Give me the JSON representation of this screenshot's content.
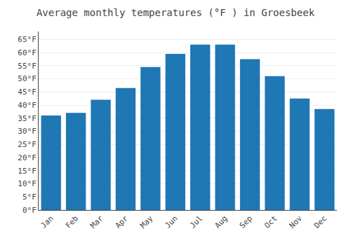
{
  "chart_data": {
    "type": "bar",
    "title": "Average monthly temperatures (°F ) in Groesbeek",
    "categories": [
      "Jan",
      "Feb",
      "Mar",
      "Apr",
      "May",
      "Jun",
      "Jul",
      "Aug",
      "Sep",
      "Oct",
      "Nov",
      "Dec"
    ],
    "values": [
      36,
      37,
      42,
      46.5,
      54.5,
      59.5,
      63,
      63,
      57.5,
      51,
      42.5,
      38.5
    ],
    "ylim": [
      0,
      68
    ],
    "yticks": [
      {
        "value": 0,
        "label": "0°F"
      },
      {
        "value": 5,
        "label": "5°F"
      },
      {
        "value": 10,
        "label": "10°F"
      },
      {
        "value": 15,
        "label": "15°F"
      },
      {
        "value": 20,
        "label": "20°F"
      },
      {
        "value": 25,
        "label": "25°F"
      },
      {
        "value": 30,
        "label": "30°F"
      },
      {
        "value": 35,
        "label": "35°F"
      },
      {
        "value": 40,
        "label": "40°F"
      },
      {
        "value": 45,
        "label": "45°F"
      },
      {
        "value": 50,
        "label": "50°F"
      },
      {
        "value": 55,
        "label": "55°F"
      },
      {
        "value": 60,
        "label": "60°F"
      },
      {
        "value": 65,
        "label": "65°F"
      }
    ],
    "grid": true
  }
}
